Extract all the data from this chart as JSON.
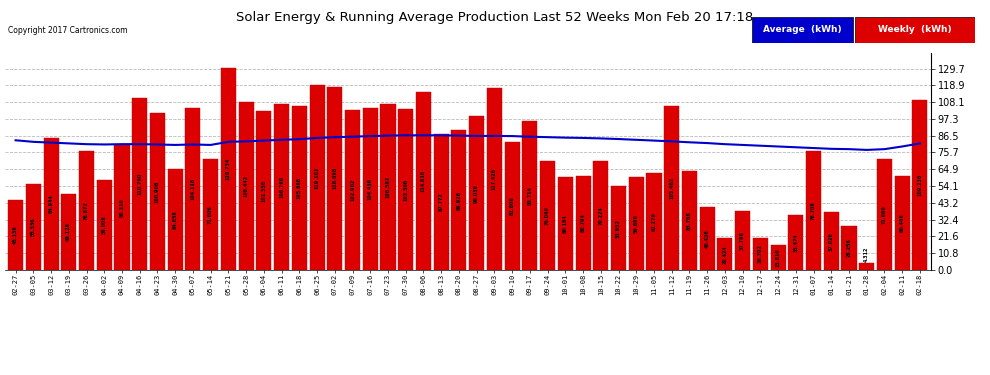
{
  "title": "Solar Energy & Running Average Production Last 52 Weeks Mon Feb 20 17:18",
  "copyright": "Copyright 2017 Cartronics.com",
  "ylabel_right_ticks": [
    0.0,
    10.8,
    21.6,
    32.4,
    43.2,
    54.1,
    64.9,
    75.7,
    86.5,
    97.3,
    108.1,
    118.9,
    129.7
  ],
  "bar_color": "#DD0000",
  "bar_edge_color": "#BB0000",
  "avg_line_color": "#0000CC",
  "background_color": "#FFFFFF",
  "plot_bg_color": "#FFFFFF",
  "grid_color": "#BBBBBB",
  "categories": [
    "02-27",
    "03-05",
    "03-12",
    "03-19",
    "03-26",
    "04-02",
    "04-09",
    "04-16",
    "04-23",
    "04-30",
    "05-07",
    "05-14",
    "05-21",
    "05-28",
    "06-04",
    "06-11",
    "06-18",
    "06-25",
    "07-02",
    "07-09",
    "07-16",
    "07-23",
    "07-30",
    "08-06",
    "08-13",
    "08-20",
    "08-27",
    "09-03",
    "09-10",
    "09-17",
    "09-24",
    "10-01",
    "10-08",
    "10-15",
    "10-22",
    "10-29",
    "11-05",
    "11-12",
    "11-19",
    "11-26",
    "12-03",
    "12-10",
    "12-17",
    "12-24",
    "12-31",
    "01-07",
    "01-14",
    "01-21",
    "01-28",
    "02-04",
    "02-11",
    "02-18"
  ],
  "weekly_values": [
    45.136,
    55.536,
    84.944,
    49.128,
    76.872,
    58.008,
    80.31,
    110.79,
    100.906,
    64.858,
    104.118,
    71.606,
    129.734,
    108.442,
    102.358,
    106.766,
    105.668,
    119.102,
    118.098,
    102.902,
    104.456,
    106.592,
    103.506,
    114.816,
    87.772,
    89.926,
    99.036,
    117.426,
    82.606,
    95.714,
    70.04,
    60.164,
    60.794,
    70.224,
    53.952,
    59.68,
    62.27,
    105.402,
    63.788,
    40.426,
    20.424,
    37.796,
    20.702,
    15.81,
    35.474,
    76.708,
    37.026,
    28.256,
    4.312,
    71.66,
    60.446,
    109.236
  ],
  "avg_values": [
    83.5,
    82.5,
    82.0,
    81.5,
    81.0,
    80.8,
    81.0,
    81.0,
    80.8,
    80.5,
    80.8,
    80.5,
    82.5,
    82.8,
    83.3,
    83.8,
    84.2,
    85.0,
    85.5,
    85.8,
    86.2,
    86.5,
    86.7,
    86.7,
    86.7,
    86.5,
    86.3,
    86.3,
    86.2,
    85.8,
    85.5,
    85.2,
    85.0,
    84.7,
    84.3,
    83.8,
    83.3,
    82.8,
    82.2,
    81.7,
    81.0,
    80.5,
    80.0,
    79.5,
    79.0,
    78.5,
    78.0,
    77.8,
    77.3,
    77.8,
    79.5,
    81.5
  ],
  "legend_avg_color": "#0000FF",
  "legend_avg_label": "Average  (kWh)",
  "legend_weekly_color": "#DD0000",
  "legend_weekly_label": "Weekly  (kWh)",
  "ymax": 140,
  "ymin": 0
}
